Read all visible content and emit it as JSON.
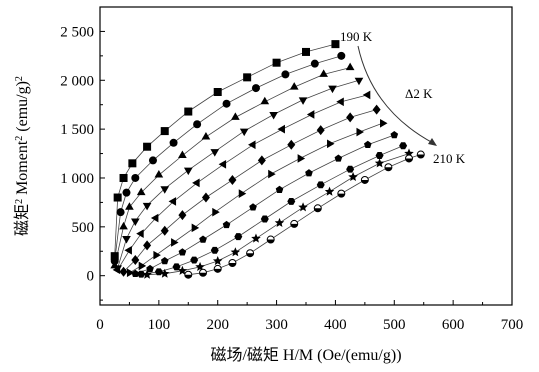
{
  "chart_data": {
    "type": "scatter",
    "title": "",
    "xlabel": "磁场/磁矩 H/M (Oe/(emu/g))",
    "ylabel_parts": {
      "pre": "磁矩",
      "sup1": "2",
      "mid": " Moment",
      "sup2": "2",
      "post": " (emu/g)",
      "sup3": "2"
    },
    "xlim": [
      0,
      700
    ],
    "ylim": [
      -300,
      2750
    ],
    "xticks": [
      0,
      100,
      200,
      300,
      400,
      500,
      600,
      700
    ],
    "xtick_labels": [
      "0",
      "100",
      "200",
      "300",
      "400",
      "500",
      "600",
      "700"
    ],
    "yticks": [
      0,
      500,
      1000,
      1500,
      2000,
      2500
    ],
    "ytick_labels": [
      "0",
      "500",
      "1 000",
      "1 500",
      "2 000",
      "2 500"
    ],
    "grid": false,
    "annotations": {
      "top_label": "190 K",
      "bottom_label": "210 K",
      "step_label": "Δ2 K"
    },
    "series": [
      {
        "temperature_k": 190,
        "marker": "square",
        "x": [
          25,
          30,
          40,
          55,
          80,
          110,
          150,
          200,
          250,
          300,
          350,
          400
        ],
        "y": [
          200,
          800,
          1000,
          1150,
          1320,
          1480,
          1680,
          1880,
          2030,
          2180,
          2290,
          2370
        ]
      },
      {
        "temperature_k": 192,
        "marker": "circle",
        "x": [
          25,
          35,
          45,
          60,
          90,
          125,
          165,
          215,
          265,
          315,
          365,
          410
        ],
        "y": [
          150,
          650,
          850,
          1000,
          1180,
          1360,
          1550,
          1760,
          1920,
          2060,
          2170,
          2250
        ]
      },
      {
        "temperature_k": 194,
        "marker": "triangle-up",
        "x": [
          25,
          40,
          50,
          70,
          100,
          140,
          180,
          230,
          280,
          330,
          380,
          425
        ],
        "y": [
          100,
          500,
          700,
          850,
          1030,
          1230,
          1420,
          1620,
          1780,
          1930,
          2060,
          2130
        ]
      },
      {
        "temperature_k": 196,
        "marker": "triangle-down",
        "x": [
          30,
          45,
          60,
          80,
          110,
          150,
          195,
          245,
          295,
          345,
          395,
          440
        ],
        "y": [
          80,
          380,
          560,
          720,
          890,
          1080,
          1270,
          1480,
          1650,
          1800,
          1920,
          2000
        ]
      },
      {
        "temperature_k": 198,
        "marker": "triangle-left",
        "x": [
          30,
          50,
          70,
          95,
          125,
          165,
          210,
          260,
          310,
          360,
          410,
          455
        ],
        "y": [
          60,
          260,
          430,
          590,
          760,
          950,
          1140,
          1340,
          1500,
          1650,
          1780,
          1850
        ]
      },
      {
        "temperature_k": 200,
        "marker": "diamond",
        "x": [
          40,
          60,
          80,
          110,
          140,
          180,
          225,
          275,
          325,
          375,
          425,
          470
        ],
        "y": [
          40,
          160,
          310,
          460,
          620,
          800,
          980,
          1180,
          1340,
          1490,
          1620,
          1700
        ]
      },
      {
        "temperature_k": 202,
        "marker": "triangle-right",
        "x": [
          50,
          70,
          95,
          125,
          160,
          195,
          240,
          290,
          340,
          390,
          440,
          480
        ],
        "y": [
          30,
          100,
          210,
          340,
          490,
          650,
          840,
          1040,
          1200,
          1350,
          1470,
          1560
        ]
      },
      {
        "temperature_k": 204,
        "marker": "pentagon",
        "x": [
          60,
          85,
          110,
          140,
          175,
          215,
          260,
          305,
          355,
          405,
          455,
          500
        ],
        "y": [
          20,
          70,
          150,
          240,
          370,
          520,
          700,
          880,
          1050,
          1200,
          1340,
          1440
        ]
      },
      {
        "temperature_k": 206,
        "marker": "hexagon",
        "x": [
          70,
          100,
          130,
          160,
          195,
          235,
          280,
          325,
          375,
          425,
          475,
          515
        ],
        "y": [
          15,
          40,
          90,
          160,
          260,
          400,
          580,
          760,
          930,
          1090,
          1230,
          1330
        ]
      },
      {
        "temperature_k": 208,
        "marker": "star",
        "x": [
          80,
          110,
          140,
          170,
          200,
          230,
          265,
          305,
          345,
          390,
          430,
          475,
          525
        ],
        "y": [
          10,
          20,
          50,
          90,
          150,
          240,
          380,
          540,
          700,
          860,
          1010,
          1150,
          1250
        ]
      },
      {
        "temperature_k": 210,
        "marker": "half-circle",
        "x": [
          150,
          175,
          200,
          225,
          255,
          290,
          330,
          370,
          410,
          450,
          490,
          525,
          545
        ],
        "y": [
          10,
          30,
          70,
          130,
          230,
          370,
          530,
          690,
          840,
          980,
          1110,
          1200,
          1240
        ]
      }
    ]
  }
}
